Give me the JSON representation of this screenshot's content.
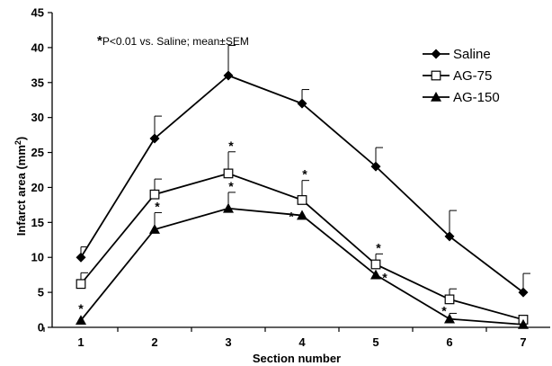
{
  "chart_data": {
    "type": "line",
    "xlabel": "Section number",
    "ylabel": "Infarct area (mm",
    "ylabel_sup": "2",
    "ylabel_end": ")",
    "annotation": "P<0.01 vs. Saline;  mean±SEM",
    "annotation_star": "*",
    "categories": [
      "1",
      "2",
      "3",
      "4",
      "5",
      "6",
      "7"
    ],
    "x": [
      1,
      2,
      3,
      4,
      5,
      6,
      7
    ],
    "ylim": [
      0,
      45
    ],
    "yticks": [
      "0",
      "5",
      "10",
      "15",
      "20",
      "25",
      "30",
      "35",
      "40",
      "45"
    ],
    "legend_position": "top-right",
    "series": [
      {
        "name": "Saline",
        "marker": "diamond",
        "values": [
          10,
          27,
          36,
          32,
          23,
          13,
          5
        ],
        "errors": [
          1.5,
          3.2,
          4.3,
          2.0,
          2.7,
          3.7,
          2.7
        ]
      },
      {
        "name": "AG-75",
        "marker": "open-square",
        "values": [
          6.2,
          19,
          22,
          18.2,
          9,
          4,
          1.1
        ],
        "errors": [
          1.6,
          2.2,
          3.1,
          2.8,
          1.5,
          1.5,
          0
        ],
        "significant": [
          false,
          false,
          true,
          true,
          true,
          false,
          false
        ]
      },
      {
        "name": "AG-150",
        "marker": "triangle",
        "values": [
          1,
          14,
          17,
          16,
          7.5,
          1.2,
          0.4
        ],
        "errors": [
          0,
          2.4,
          2.3,
          0,
          0,
          0.8,
          0
        ],
        "significant": [
          true,
          true,
          true,
          true,
          true,
          true,
          false
        ]
      }
    ]
  }
}
